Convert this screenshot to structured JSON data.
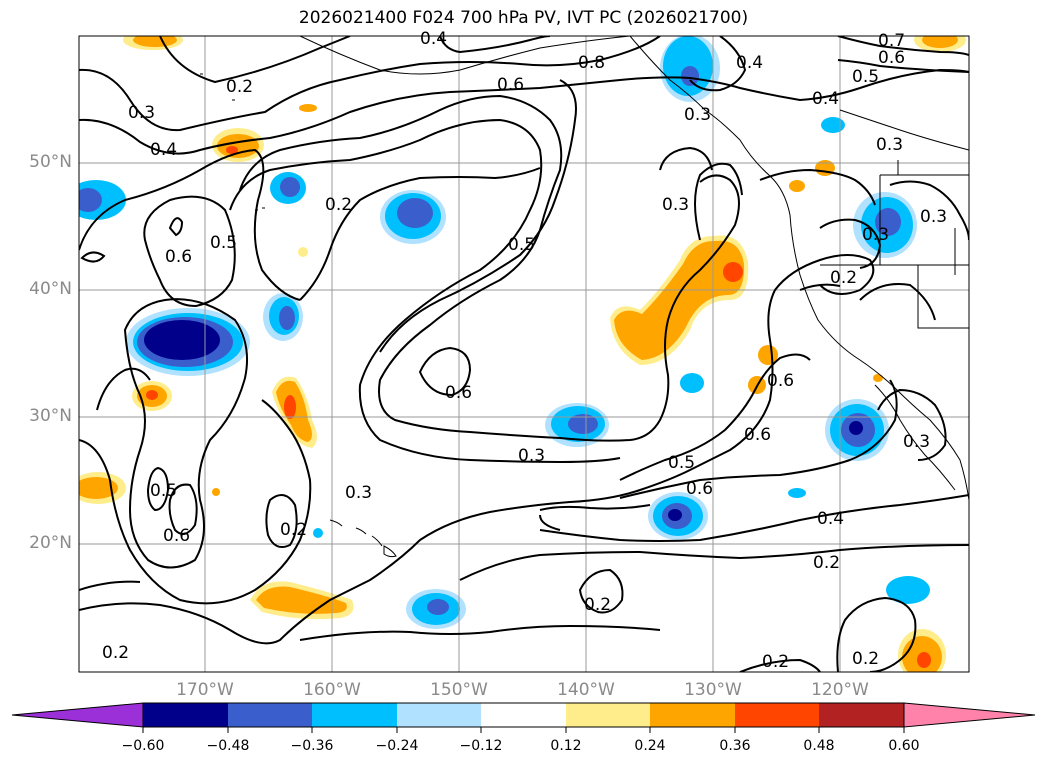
{
  "title": "2026021400 F024 700 hPa PV, IVT PC (2026021700)",
  "lat_labels": [
    "50°N",
    "40°N",
    "30°N",
    "20°N"
  ],
  "lon_labels": [
    "170°W",
    "160°W",
    "150°W",
    "140°W",
    "130°W",
    "120°W"
  ],
  "contour_labels": [
    "0.4",
    "0.3",
    "0.8",
    "0.6",
    "0.4",
    "0.5",
    "0.4",
    "0.3",
    "0.2",
    "0.6",
    "0.3",
    "0.4",
    "0.2",
    "0.5",
    "0.6",
    "0.3",
    "0.2",
    "0.3",
    "0.2",
    "0.6",
    "0.5",
    "0.3",
    "0.6",
    "0.3",
    "0.5",
    "0.6",
    "0.6",
    "0.4",
    "0.2",
    "0.2",
    "0.2",
    "0.2",
    "0.2",
    "0.3",
    "0.7",
    "0.6",
    "0.5",
    "0.3"
  ],
  "colorbar": {
    "ticks": [
      "−0.60",
      "−0.48",
      "−0.36",
      "−0.24",
      "−0.12",
      "0.12",
      "0.24",
      "0.36",
      "0.48",
      "0.60"
    ],
    "colors": [
      "#9b30d9",
      "#00008b",
      "#3a5fcd",
      "#00bfff",
      "#b0e2ff",
      "#ffffff",
      "#ffec8b",
      "#ffa500",
      "#ff4500",
      "#b22222",
      "#ff82ab"
    ]
  }
}
